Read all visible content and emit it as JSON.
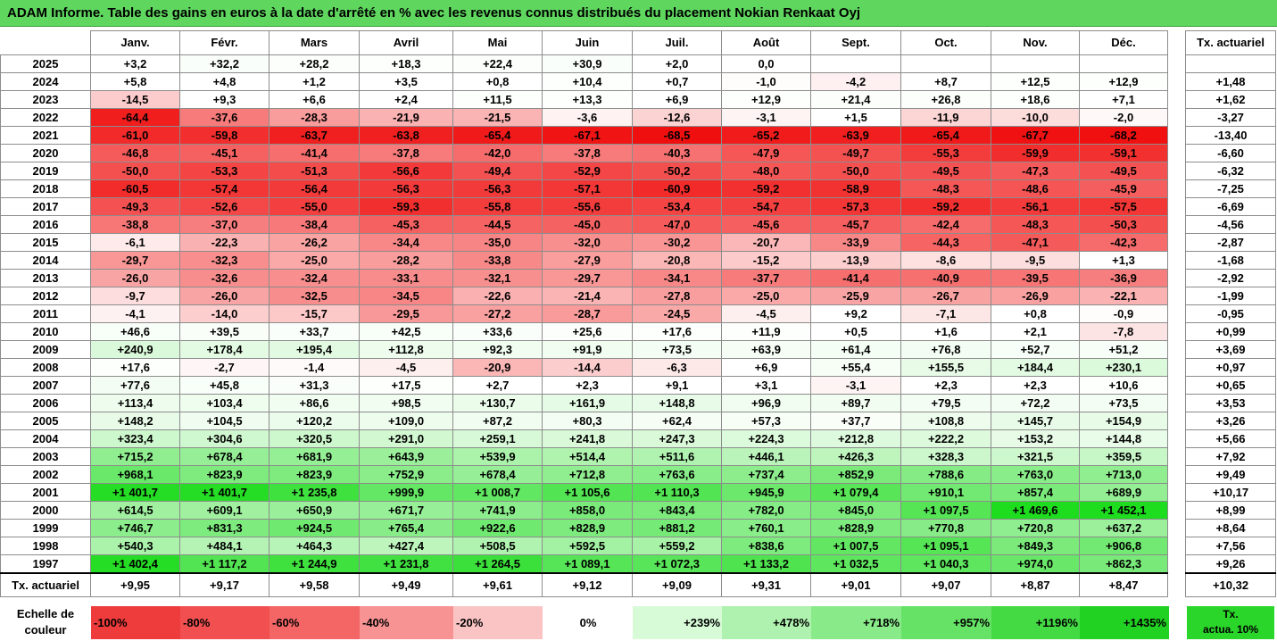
{
  "title": "ADAM Informe. Table des gains en euros à la date d'arrêté en % avec les revenus connus distribués du placement Nokian Renkaat Oyj",
  "months": [
    "Janv.",
    "Févr.",
    "Mars",
    "Avril",
    "Mai",
    "Juin",
    "Juil.",
    "Août",
    "Sept.",
    "Oct.",
    "Nov.",
    "Déc."
  ],
  "side_header": "Tx. actuariel",
  "rows": [
    {
      "year": "2025",
      "values": [
        "+3,2",
        "+32,2",
        "+28,2",
        "+18,3",
        "+22,4",
        "+30,9",
        "+2,0",
        "0,0",
        "",
        "",
        "",
        ""
      ],
      "rate": ""
    },
    {
      "year": "2024",
      "values": [
        "+5,8",
        "+4,8",
        "+1,2",
        "+3,5",
        "+0,8",
        "+10,4",
        "+0,7",
        "-1,0",
        "-4,2",
        "+8,7",
        "+12,5",
        "+12,9"
      ],
      "rate": "+1,48"
    },
    {
      "year": "2023",
      "values": [
        "-14,5",
        "+9,3",
        "+6,6",
        "+2,4",
        "+11,5",
        "+13,3",
        "+6,9",
        "+12,9",
        "+21,4",
        "+26,8",
        "+18,6",
        "+7,1"
      ],
      "rate": "+1,62"
    },
    {
      "year": "2022",
      "values": [
        "-64,4",
        "-37,6",
        "-28,3",
        "-21,9",
        "-21,5",
        "-3,6",
        "-12,6",
        "-3,1",
        "+1,5",
        "-11,9",
        "-10,0",
        "-2,0"
      ],
      "rate": "-3,27"
    },
    {
      "year": "2021",
      "values": [
        "-61,0",
        "-59,8",
        "-63,7",
        "-63,8",
        "-65,4",
        "-67,1",
        "-68,5",
        "-65,2",
        "-63,9",
        "-65,4",
        "-67,7",
        "-68,2"
      ],
      "rate": "-13,40"
    },
    {
      "year": "2020",
      "values": [
        "-46,8",
        "-45,1",
        "-41,4",
        "-37,8",
        "-42,0",
        "-37,8",
        "-40,3",
        "-47,9",
        "-49,7",
        "-55,3",
        "-59,9",
        "-59,1"
      ],
      "rate": "-6,60"
    },
    {
      "year": "2019",
      "values": [
        "-50,0",
        "-53,3",
        "-51,3",
        "-56,6",
        "-49,4",
        "-52,9",
        "-50,2",
        "-48,0",
        "-50,0",
        "-49,5",
        "-47,3",
        "-49,5"
      ],
      "rate": "-6,32"
    },
    {
      "year": "2018",
      "values": [
        "-60,5",
        "-57,4",
        "-56,4",
        "-56,3",
        "-56,3",
        "-57,1",
        "-60,9",
        "-59,2",
        "-58,9",
        "-48,3",
        "-48,6",
        "-45,9"
      ],
      "rate": "-7,25"
    },
    {
      "year": "2017",
      "values": [
        "-49,3",
        "-52,6",
        "-55,0",
        "-59,3",
        "-55,8",
        "-55,6",
        "-53,4",
        "-54,7",
        "-57,3",
        "-59,2",
        "-56,1",
        "-57,5"
      ],
      "rate": "-6,69"
    },
    {
      "year": "2016",
      "values": [
        "-38,8",
        "-37,0",
        "-38,4",
        "-45,3",
        "-44,5",
        "-45,0",
        "-47,0",
        "-45,6",
        "-45,7",
        "-42,4",
        "-48,3",
        "-50,3"
      ],
      "rate": "-4,56"
    },
    {
      "year": "2015",
      "values": [
        "-6,1",
        "-22,3",
        "-26,2",
        "-34,4",
        "-35,0",
        "-32,0",
        "-30,2",
        "-20,7",
        "-33,9",
        "-44,3",
        "-47,1",
        "-42,3"
      ],
      "rate": "-2,87"
    },
    {
      "year": "2014",
      "values": [
        "-29,7",
        "-32,3",
        "-25,0",
        "-28,2",
        "-33,8",
        "-27,9",
        "-20,8",
        "-15,2",
        "-13,9",
        "-8,6",
        "-9,5",
        "+1,3"
      ],
      "rate": "-1,68"
    },
    {
      "year": "2013",
      "values": [
        "-26,0",
        "-32,6",
        "-32,4",
        "-33,1",
        "-32,1",
        "-29,7",
        "-34,1",
        "-37,7",
        "-41,4",
        "-40,9",
        "-39,5",
        "-36,9"
      ],
      "rate": "-2,92"
    },
    {
      "year": "2012",
      "values": [
        "-9,7",
        "-26,0",
        "-32,5",
        "-34,5",
        "-22,6",
        "-21,4",
        "-27,8",
        "-25,0",
        "-25,9",
        "-26,7",
        "-26,9",
        "-22,1"
      ],
      "rate": "-1,99"
    },
    {
      "year": "2011",
      "values": [
        "-4,1",
        "-14,0",
        "-15,7",
        "-29,5",
        "-27,2",
        "-28,7",
        "-24,5",
        "-4,5",
        "+9,2",
        "-7,1",
        "+0,8",
        "-0,9"
      ],
      "rate": "-0,95"
    },
    {
      "year": "2010",
      "values": [
        "+46,6",
        "+39,5",
        "+33,7",
        "+42,5",
        "+33,6",
        "+25,6",
        "+17,6",
        "+11,9",
        "+0,5",
        "+1,6",
        "+2,1",
        "-7,8"
      ],
      "rate": "+0,99"
    },
    {
      "year": "2009",
      "values": [
        "+240,9",
        "+178,4",
        "+195,4",
        "+112,8",
        "+92,3",
        "+91,9",
        "+73,5",
        "+63,9",
        "+61,4",
        "+76,8",
        "+52,7",
        "+51,2"
      ],
      "rate": "+3,69"
    },
    {
      "year": "2008",
      "values": [
        "+17,6",
        "-2,7",
        "-1,4",
        "-4,5",
        "-20,9",
        "-14,4",
        "-6,3",
        "+6,9",
        "+55,4",
        "+155,5",
        "+184,4",
        "+230,1"
      ],
      "rate": "+0,97"
    },
    {
      "year": "2007",
      "values": [
        "+77,6",
        "+45,8",
        "+31,3",
        "+17,5",
        "+2,7",
        "+2,3",
        "+9,1",
        "+3,1",
        "-3,1",
        "+2,3",
        "+2,3",
        "+10,6"
      ],
      "rate": "+0,65"
    },
    {
      "year": "2006",
      "values": [
        "+113,4",
        "+103,4",
        "+86,6",
        "+98,5",
        "+130,7",
        "+161,9",
        "+148,8",
        "+96,9",
        "+89,7",
        "+79,5",
        "+72,2",
        "+73,5"
      ],
      "rate": "+3,53"
    },
    {
      "year": "2005",
      "values": [
        "+148,2",
        "+104,5",
        "+120,2",
        "+109,0",
        "+87,2",
        "+80,3",
        "+62,4",
        "+57,3",
        "+37,7",
        "+108,8",
        "+145,7",
        "+154,9"
      ],
      "rate": "+3,26"
    },
    {
      "year": "2004",
      "values": [
        "+323,4",
        "+304,6",
        "+320,5",
        "+291,0",
        "+259,1",
        "+241,8",
        "+247,3",
        "+224,3",
        "+212,8",
        "+222,2",
        "+153,2",
        "+144,8"
      ],
      "rate": "+5,66"
    },
    {
      "year": "2003",
      "values": [
        "+715,2",
        "+678,4",
        "+681,9",
        "+643,9",
        "+539,9",
        "+514,4",
        "+511,6",
        "+446,1",
        "+426,3",
        "+328,3",
        "+321,5",
        "+359,5"
      ],
      "rate": "+7,92"
    },
    {
      "year": "2002",
      "values": [
        "+968,1",
        "+823,9",
        "+823,9",
        "+752,9",
        "+678,4",
        "+712,8",
        "+763,6",
        "+737,4",
        "+852,9",
        "+788,6",
        "+763,0",
        "+713,0"
      ],
      "rate": "+9,49"
    },
    {
      "year": "2001",
      "values": [
        "+1 401,7",
        "+1 401,7",
        "+1 235,8",
        "+999,9",
        "+1 008,7",
        "+1 105,6",
        "+1 110,3",
        "+945,9",
        "+1 079,4",
        "+910,1",
        "+857,4",
        "+689,9"
      ],
      "rate": "+10,17"
    },
    {
      "year": "2000",
      "values": [
        "+614,5",
        "+609,1",
        "+650,9",
        "+671,7",
        "+741,9",
        "+858,0",
        "+843,4",
        "+782,0",
        "+845,0",
        "+1 097,5",
        "+1 469,6",
        "+1 452,1"
      ],
      "rate": "+8,99"
    },
    {
      "year": "1999",
      "values": [
        "+746,7",
        "+831,3",
        "+924,5",
        "+765,4",
        "+922,6",
        "+828,9",
        "+881,2",
        "+760,1",
        "+828,9",
        "+770,8",
        "+720,8",
        "+637,2"
      ],
      "rate": "+8,64"
    },
    {
      "year": "1998",
      "values": [
        "+540,3",
        "+484,1",
        "+464,3",
        "+427,4",
        "+508,5",
        "+592,5",
        "+559,2",
        "+838,6",
        "+1 007,5",
        "+1 095,1",
        "+849,3",
        "+906,8"
      ],
      "rate": "+7,56"
    },
    {
      "year": "1997",
      "values": [
        "+1 402,4",
        "+1 117,2",
        "+1 244,9",
        "+1 231,8",
        "+1 264,5",
        "+1 089,1",
        "+1 072,3",
        "+1 133,2",
        "+1 032,5",
        "+1 040,3",
        "+974,0",
        "+862,3"
      ],
      "rate": "+9,26"
    }
  ],
  "totals": {
    "label": "Tx. actuariel",
    "values": [
      "+9,95",
      "+9,17",
      "+9,58",
      "+9,49",
      "+9,61",
      "+9,12",
      "+9,09",
      "+9,31",
      "+9,01",
      "+9,07",
      "+8,87",
      "+8,47"
    ],
    "overall": "+10,32"
  },
  "legend": {
    "label_line1": "Echelle de",
    "label_line2": "couleur",
    "items": [
      {
        "text": "-100%",
        "color": "#ee3b3b",
        "align": "left"
      },
      {
        "text": "-80%",
        "color": "#f25050",
        "align": "left"
      },
      {
        "text": "-60%",
        "color": "#f46666",
        "align": "left"
      },
      {
        "text": "-40%",
        "color": "#f79393",
        "align": "left"
      },
      {
        "text": "-20%",
        "color": "#fbc4c4",
        "align": "left"
      },
      {
        "text": "0%",
        "color": "#ffffff",
        "align": "center"
      },
      {
        "text": "+239%",
        "color": "#d7fbd7",
        "align": "right"
      },
      {
        "text": "+478%",
        "color": "#aff2af",
        "align": "right"
      },
      {
        "text": "+718%",
        "color": "#89ea89",
        "align": "right"
      },
      {
        "text": "+957%",
        "color": "#66e266",
        "align": "right"
      },
      {
        "text": "+1196%",
        "color": "#44da44",
        "align": "right"
      },
      {
        "text": "+1435%",
        "color": "#22d222",
        "align": "right"
      }
    ],
    "side_line1": "Tx.",
    "side_line2": "actua. 10%",
    "side_color": "#2ad62a"
  }
}
